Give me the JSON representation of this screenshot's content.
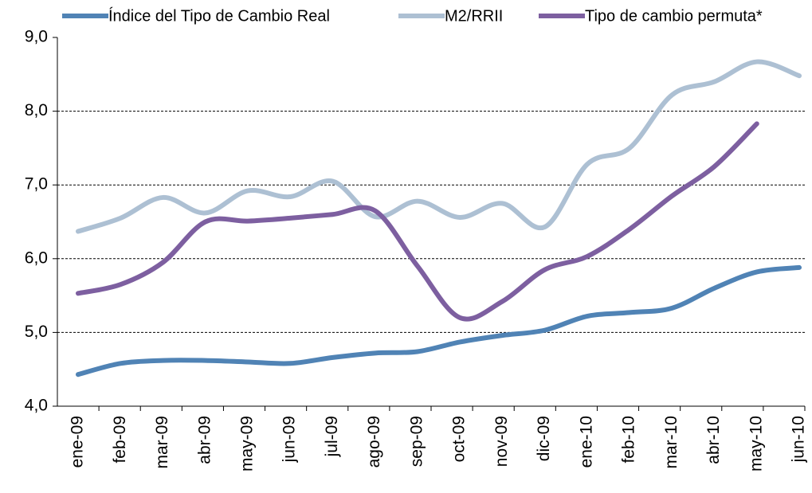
{
  "chart_data": {
    "type": "line",
    "categories": [
      "ene-09",
      "feb-09",
      "mar-09",
      "abr-09",
      "may-09",
      "jun-09",
      "jul-09",
      "ago-09",
      "sep-09",
      "oct-09",
      "nov-09",
      "dic-09",
      "ene-10",
      "feb-10",
      "mar-10",
      "abr-10",
      "may-10",
      "jun-10"
    ],
    "series": [
      {
        "name": "Índice del Tipo de Cambio Real",
        "color": "#5083b5",
        "values": [
          4.43,
          4.58,
          4.62,
          4.62,
          4.6,
          4.58,
          4.66,
          4.72,
          4.74,
          4.87,
          4.96,
          5.03,
          5.22,
          5.27,
          5.33,
          5.6,
          5.82,
          5.88
        ]
      },
      {
        "name": "M2/RRII",
        "color": "#adc0d3",
        "values": [
          6.37,
          6.55,
          6.83,
          6.62,
          6.92,
          6.84,
          7.05,
          6.57,
          6.78,
          6.56,
          6.75,
          6.43,
          7.28,
          7.5,
          8.22,
          8.4,
          8.67,
          8.48
        ]
      },
      {
        "name": "Tipo de cambio permuta*",
        "color": "#7d5fa0",
        "values": [
          5.53,
          5.65,
          5.95,
          6.5,
          6.51,
          6.55,
          6.6,
          6.65,
          5.9,
          5.2,
          5.42,
          5.85,
          6.03,
          6.4,
          6.85,
          7.25,
          7.83,
          null
        ]
      }
    ],
    "ylim": [
      4,
      9
    ],
    "yticks": [
      {
        "value": 4,
        "label": "4,0"
      },
      {
        "value": 5,
        "label": "5,0"
      },
      {
        "value": 6,
        "label": "6,0"
      },
      {
        "value": 7,
        "label": "7,0"
      },
      {
        "value": 8,
        "label": "8,0"
      },
      {
        "value": 9,
        "label": "9,0"
      }
    ],
    "grid": true,
    "legend": "top"
  }
}
